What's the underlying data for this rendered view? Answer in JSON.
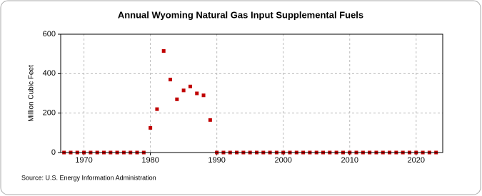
{
  "chart_data": {
    "type": "scatter",
    "title": "Annual Wyoming Natural Gas Input Supplemental Fuels",
    "y_label": "Million Cubic Feet",
    "source": "Source: U.S. Energy Information Administration",
    "color": "#c00000",
    "grid": true,
    "x": [
      1967,
      1968,
      1969,
      1970,
      1971,
      1972,
      1973,
      1974,
      1975,
      1976,
      1977,
      1978,
      1979,
      1980,
      1981,
      1982,
      1983,
      1984,
      1985,
      1986,
      1987,
      1988,
      1989,
      1990,
      1991,
      1992,
      1993,
      1994,
      1995,
      1996,
      1997,
      1998,
      1999,
      2000,
      2001,
      2002,
      2003,
      2004,
      2005,
      2006,
      2007,
      2008,
      2009,
      2010,
      2011,
      2012,
      2013,
      2014,
      2015,
      2016,
      2017,
      2018,
      2019,
      2020,
      2021,
      2022,
      2023
    ],
    "values": [
      0,
      0,
      0,
      0,
      0,
      0,
      0,
      0,
      0,
      0,
      0,
      0,
      0,
      125,
      220,
      515,
      370,
      270,
      315,
      335,
      300,
      290,
      165,
      0,
      0,
      0,
      0,
      0,
      0,
      0,
      0,
      0,
      0,
      0,
      0,
      0,
      0,
      0,
      0,
      0,
      0,
      0,
      0,
      0,
      0,
      0,
      0,
      0,
      0,
      0,
      0,
      0,
      0,
      0,
      0,
      0,
      0
    ],
    "xlim": [
      1966.5,
      2024
    ],
    "xticks": [
      1970,
      1980,
      1990,
      2000,
      2010,
      2020
    ],
    "ylim": [
      0,
      600
    ],
    "yticks": [
      0,
      200,
      400,
      600
    ]
  }
}
